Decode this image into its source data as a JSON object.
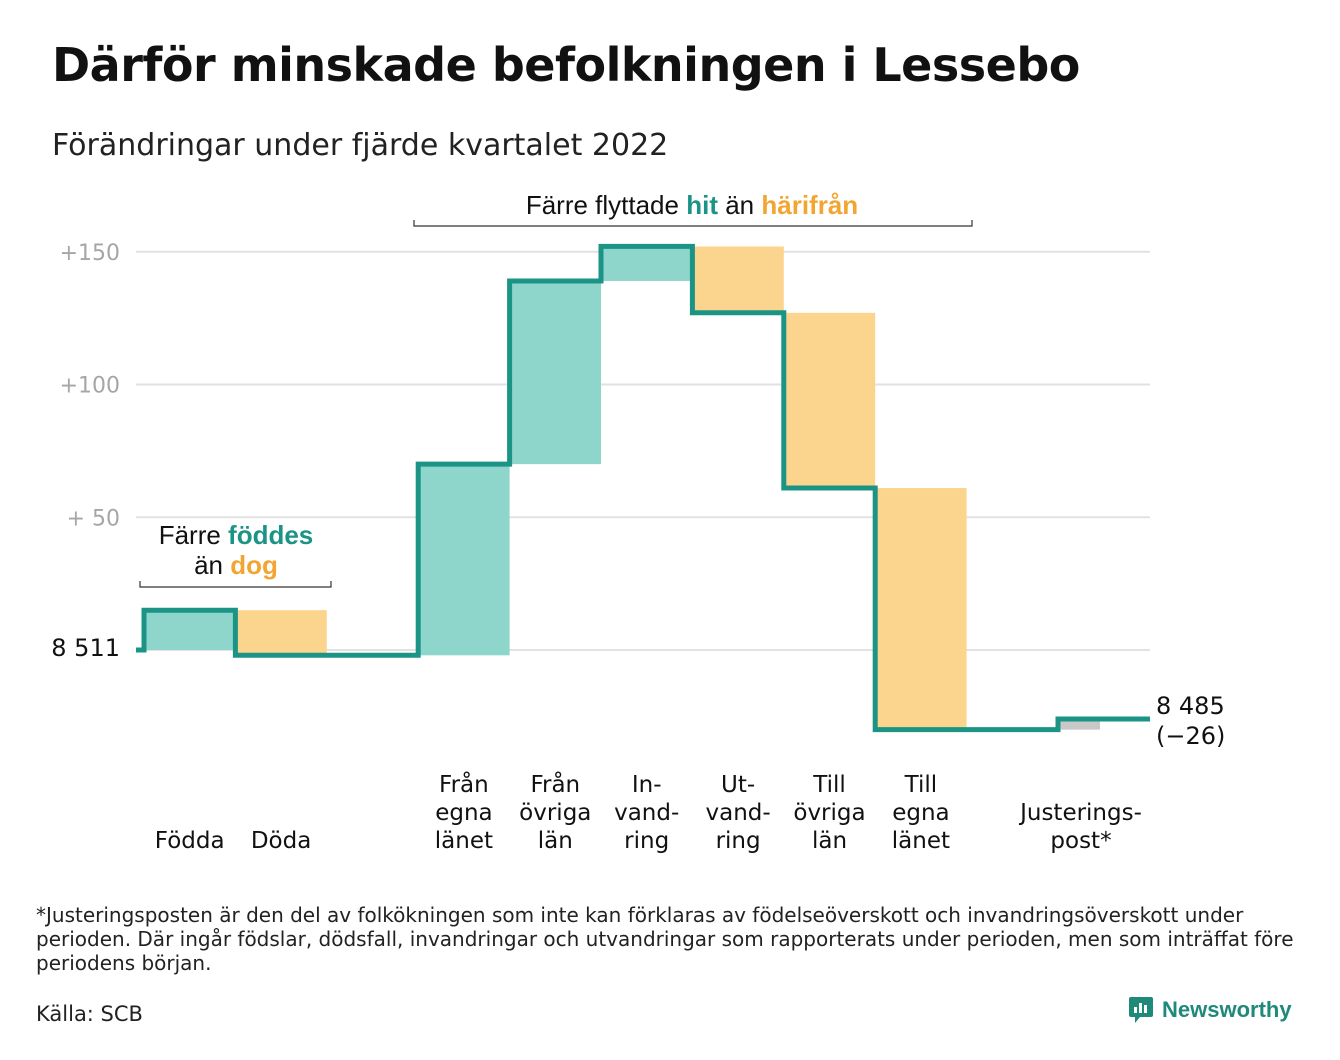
{
  "title": "Därför minskade befolkningen i Lessebo",
  "subtitle": "Förändringar under fjärde kvartalet 2022",
  "colors": {
    "inflow": "#8ed6cc",
    "outflow": "#fbd58d",
    "line": "#1b9485",
    "adjust": "#c8c8c8",
    "grid": "#e2e2e2",
    "tick": "#a6a6a6",
    "teal_text": "#1b9485",
    "orange_text": "#f3a531"
  },
  "annotations": {
    "births": {
      "line1_pre": "Färre ",
      "line1_hl": "föddes",
      "line2_pre": "än ",
      "line2_hl": "dog"
    },
    "migration": {
      "pre": "Färre flyttade ",
      "hl1": "hit",
      "mid": " än ",
      "hl2": "härifrån"
    }
  },
  "start_label": "8 511",
  "end_label": {
    "value": "8 485",
    "change": "(−26)"
  },
  "chart_data": {
    "type": "waterfall",
    "baseline": 8511,
    "ytick_labels": [
      "+150",
      "+100",
      "+ 50"
    ],
    "yticks": [
      150,
      100,
      50
    ],
    "ylim": [
      -35,
      155
    ],
    "steps": [
      {
        "label": [
          "Födda"
        ],
        "value": 15,
        "kind": "in"
      },
      {
        "label": [
          "Döda"
        ],
        "value": -17,
        "kind": "out"
      },
      {
        "label": [],
        "value": 0,
        "kind": "none"
      },
      {
        "label": [
          "Från",
          "egna",
          "länet"
        ],
        "value": 72,
        "kind": "in"
      },
      {
        "label": [
          "Från",
          "övriga",
          "län"
        ],
        "value": 69,
        "kind": "in"
      },
      {
        "label": [
          "In-",
          "vand-",
          "ring"
        ],
        "value": 13,
        "kind": "in"
      },
      {
        "label": [
          "Ut-",
          "vand-",
          "ring"
        ],
        "value": -25,
        "kind": "out"
      },
      {
        "label": [
          "Till",
          "övriga",
          "län"
        ],
        "value": -66,
        "kind": "out"
      },
      {
        "label": [
          "Till",
          "egna",
          "länet"
        ],
        "value": -91,
        "kind": "out"
      },
      {
        "label": [],
        "value": 0,
        "kind": "none"
      },
      {
        "label": [
          "Justerings-",
          "post*"
        ],
        "value": 4,
        "kind": "adjust"
      }
    ],
    "end_value": 8485,
    "change": -26
  },
  "footnote": "*Justeringsposten är den del av folkökningen som inte kan förklaras av födelseöverskott och invandringsöverskott under perioden. Där ingår födslar, dödsfall, invandringar och utvandringar som rapporterats under perioden, men som inträffat före periodens början.",
  "source": "Källa: SCB",
  "brand": {
    "name": "Newsworthy",
    "icon": "newsworthy-logo-icon"
  }
}
